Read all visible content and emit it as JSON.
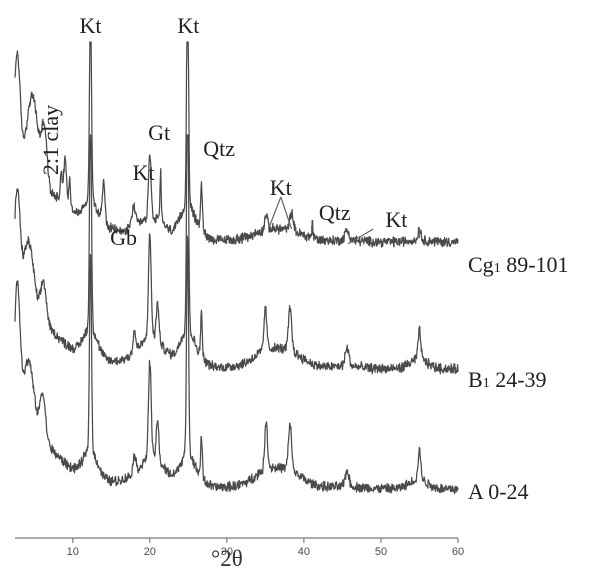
{
  "chart_data": {
    "type": "line",
    "xlabel": "°2θ",
    "xlim": [
      2.5,
      60
    ],
    "xticks": [
      10,
      20,
      30,
      40,
      50,
      60
    ],
    "grid": false,
    "series": [
      {
        "name": "Cg₁ 89-101",
        "label_main": "Cg",
        "label_sub": "1",
        "label_rest": " 89-101",
        "peaks": [
          {
            "x": 2.8,
            "y": 3.9
          },
          {
            "x": 4.8,
            "y": 3.0
          },
          {
            "x": 6.3,
            "y": 2.2
          },
          {
            "x": 8.5,
            "y": 1.1
          },
          {
            "x": 9.0,
            "y": 1.6
          },
          {
            "x": 9.6,
            "y": 1.0
          },
          {
            "x": 12.3,
            "y": 7.7
          },
          {
            "x": 14.0,
            "y": 1.5
          },
          {
            "x": 17.9,
            "y": 0.8
          },
          {
            "x": 20.0,
            "y": 2.5
          },
          {
            "x": 21.4,
            "y": 1.9
          },
          {
            "x": 24.9,
            "y": 8.8
          },
          {
            "x": 26.7,
            "y": 1.8
          },
          {
            "x": 35.1,
            "y": 0.6
          },
          {
            "x": 38.4,
            "y": 0.7
          },
          {
            "x": 41.1,
            "y": 0.7
          },
          {
            "x": 45.6,
            "y": 0.4
          },
          {
            "x": 55.0,
            "y": 0.45
          }
        ]
      },
      {
        "name": "B₁ 24-39",
        "label_main": "B",
        "label_sub": "1",
        "label_rest": " 24-39",
        "peaks": [
          {
            "x": 2.8,
            "y": 3.6
          },
          {
            "x": 4.3,
            "y": 2.3
          },
          {
            "x": 6.2,
            "y": 1.5
          },
          {
            "x": 12.3,
            "y": 8.2
          },
          {
            "x": 18.0,
            "y": 0.8
          },
          {
            "x": 20.0,
            "y": 3.9
          },
          {
            "x": 21.0,
            "y": 1.4
          },
          {
            "x": 24.9,
            "y": 9.5
          },
          {
            "x": 26.7,
            "y": 1.6
          },
          {
            "x": 35.0,
            "y": 1.6
          },
          {
            "x": 38.2,
            "y": 1.6
          },
          {
            "x": 45.6,
            "y": 0.7
          },
          {
            "x": 55.0,
            "y": 1.1
          }
        ]
      },
      {
        "name": "A 0-24",
        "label_main": "A",
        "label_sub": "",
        "label_rest": " 0-24",
        "peaks": [
          {
            "x": 2.8,
            "y": 4.5
          },
          {
            "x": 4.3,
            "y": 2.2
          },
          {
            "x": 6.1,
            "y": 1.7
          },
          {
            "x": 12.3,
            "y": 7.6
          },
          {
            "x": 18.0,
            "y": 0.7
          },
          {
            "x": 20.0,
            "y": 3.7
          },
          {
            "x": 21.0,
            "y": 1.5
          },
          {
            "x": 24.9,
            "y": 8.4
          },
          {
            "x": 26.7,
            "y": 1.5
          },
          {
            "x": 35.1,
            "y": 1.8
          },
          {
            "x": 38.2,
            "y": 1.7
          },
          {
            "x": 45.6,
            "y": 0.6
          },
          {
            "x": 55.0,
            "y": 1.1
          }
        ]
      }
    ],
    "annotations": [
      {
        "text": "2:1 clay",
        "x": 7.2,
        "rotate": -90
      },
      {
        "text": "Kt",
        "x": 12.3
      },
      {
        "text": "Kt",
        "x": 25.0
      },
      {
        "text": "Gt",
        "x": 21.2
      },
      {
        "text": "Qtz",
        "x": 29.0
      },
      {
        "text": "Kt",
        "x": 19.2
      },
      {
        "text": "Gb",
        "x": 16.6
      },
      {
        "text": "Kt",
        "x": 37.0
      },
      {
        "text": "Qtz",
        "x": 44.0
      },
      {
        "text": "Kt",
        "x": 52.0
      }
    ]
  }
}
